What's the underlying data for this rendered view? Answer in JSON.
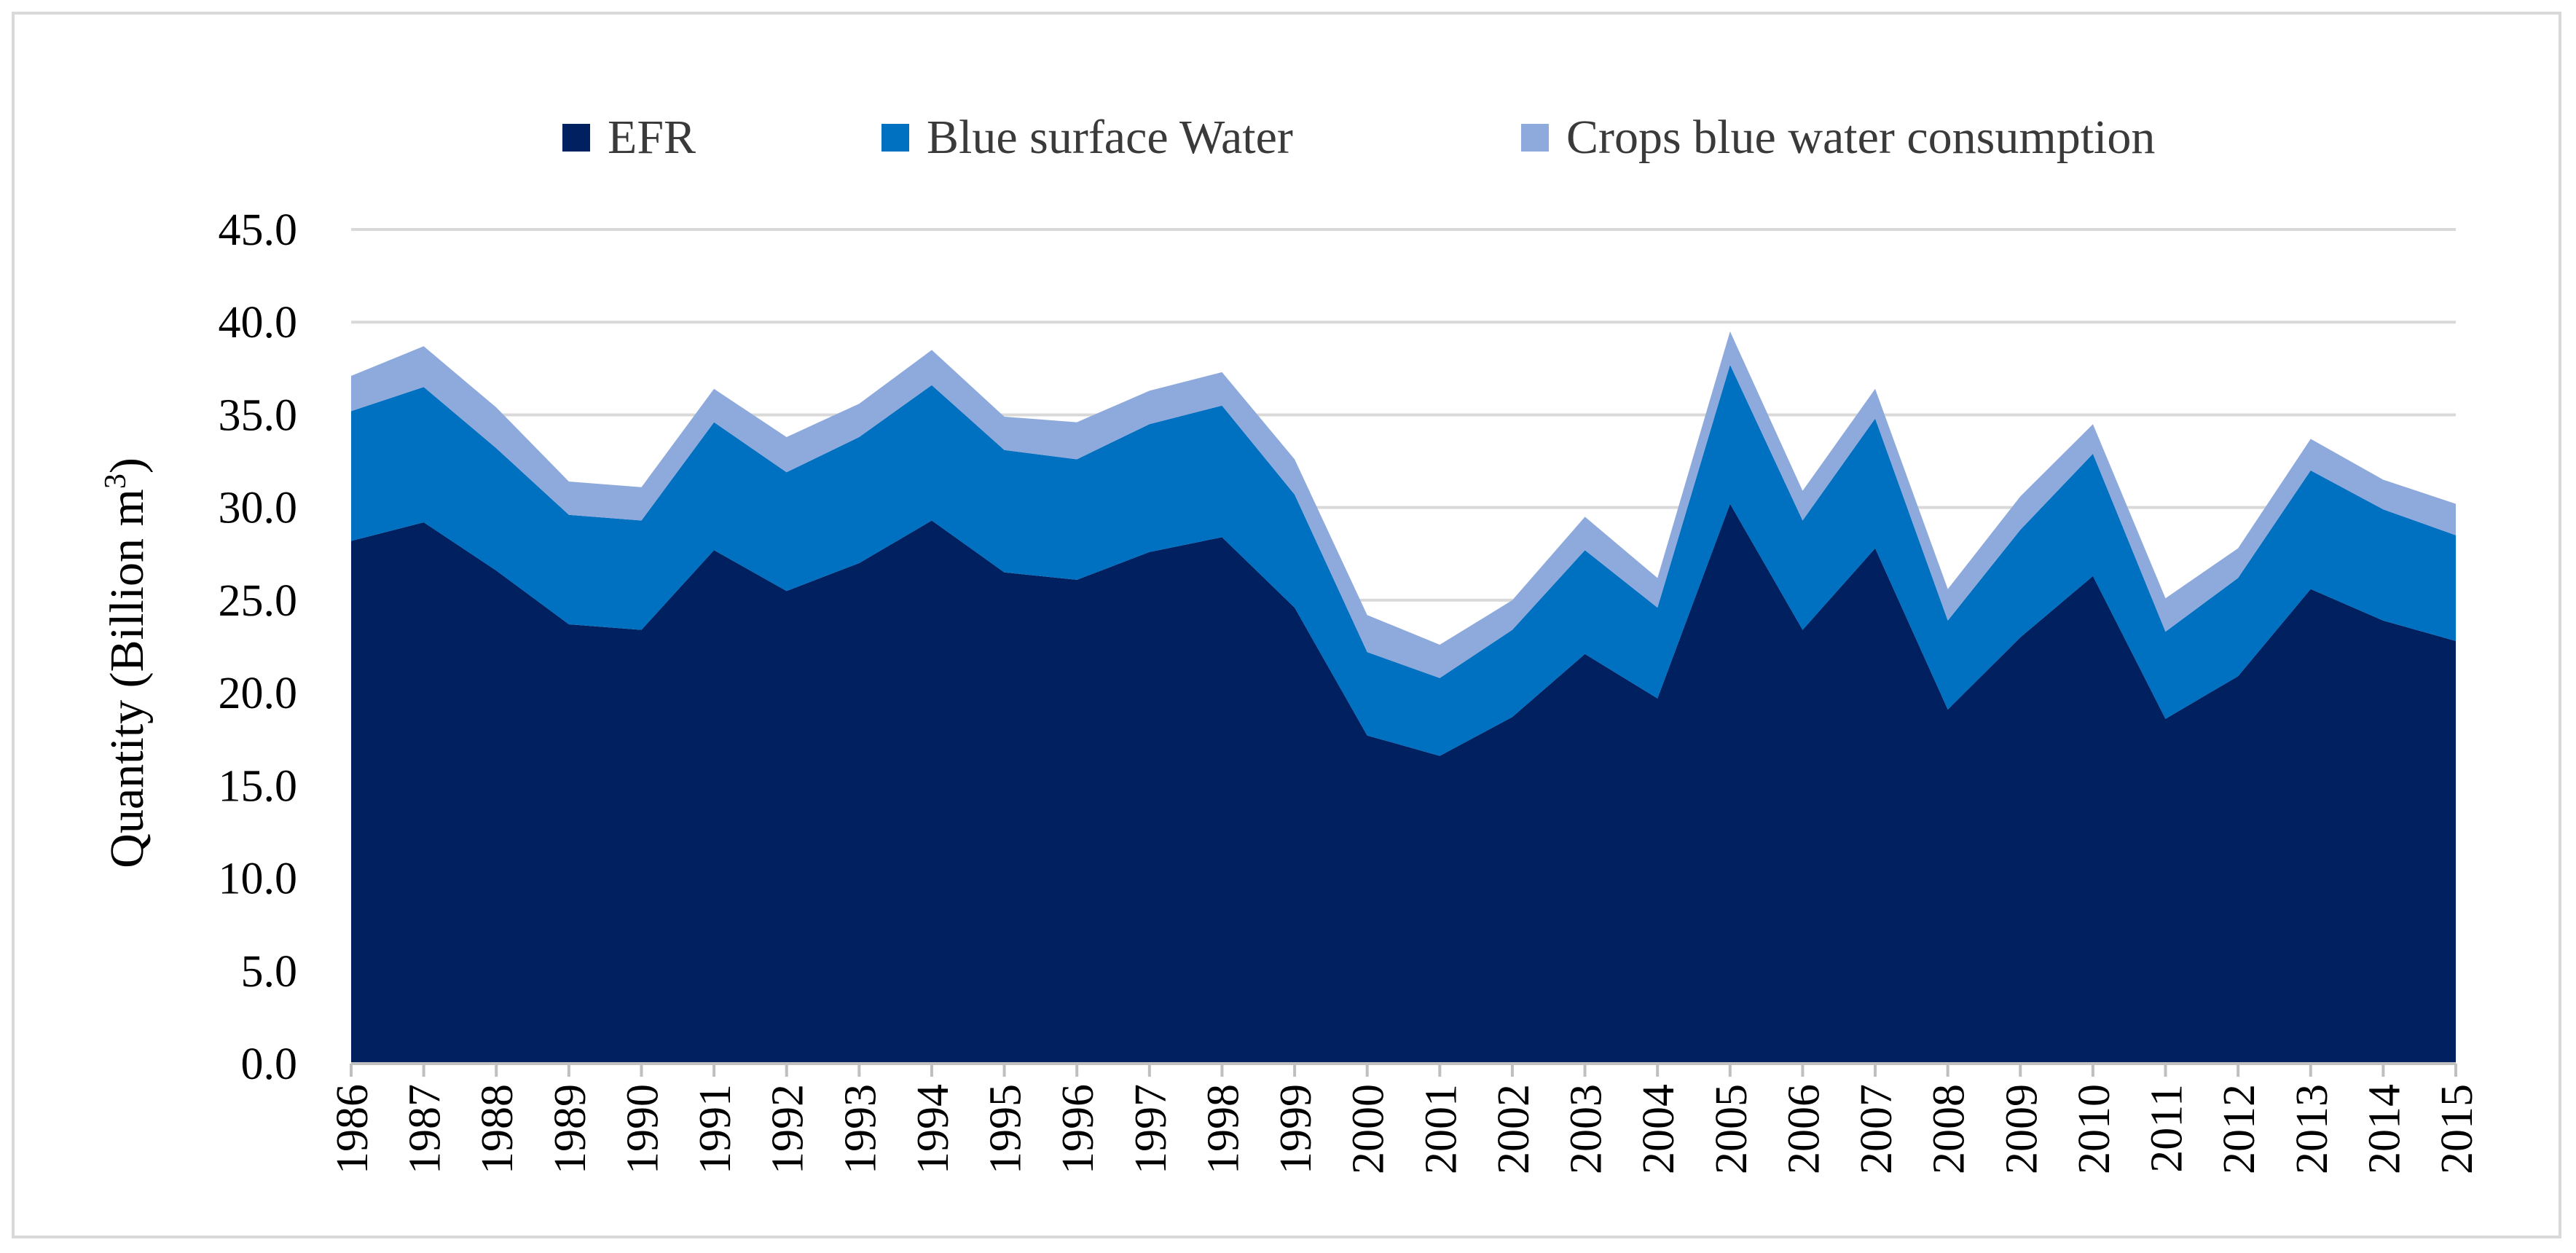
{
  "chart_data": {
    "type": "area",
    "stacked": true,
    "xlabel": "",
    "ylabel": "Quantity (Billion m",
    "ylabel_sup": "3",
    "ylabel_close": ")",
    "ylim": [
      0,
      45
    ],
    "yticks": [
      "0.0",
      "5.0",
      "10.0",
      "15.0",
      "20.0",
      "25.0",
      "30.0",
      "35.0",
      "40.0",
      "45.0"
    ],
    "grid": true,
    "legend_position": "top",
    "categories": [
      "1986",
      "1987",
      "1988",
      "1989",
      "1990",
      "1991",
      "1992",
      "1993",
      "1994",
      "1995",
      "1996",
      "1997",
      "1998",
      "1999",
      "2000",
      "2001",
      "2002",
      "2003",
      "2004",
      "2005",
      "2006",
      "2007",
      "2008",
      "2009",
      "2010",
      "2011",
      "2012",
      "2013",
      "2014",
      "2015"
    ],
    "series": [
      {
        "name": "EFR",
        "color": "#002060",
        "values": [
          28.2,
          29.2,
          26.6,
          23.7,
          23.4,
          27.7,
          25.5,
          27.0,
          29.3,
          26.5,
          26.1,
          27.6,
          28.4,
          24.6,
          17.7,
          16.6,
          18.7,
          22.1,
          19.7,
          30.2,
          23.4,
          27.8,
          19.1,
          23.0,
          26.3,
          18.6,
          20.9,
          25.6,
          23.9,
          22.8
        ]
      },
      {
        "name": "Blue surface Water",
        "color": "#0070c0",
        "values": [
          7.0,
          7.3,
          6.6,
          5.9,
          5.9,
          6.9,
          6.4,
          6.8,
          7.3,
          6.6,
          6.5,
          6.9,
          7.1,
          6.1,
          4.5,
          4.2,
          4.7,
          5.6,
          4.9,
          7.5,
          5.9,
          7.0,
          4.8,
          5.8,
          6.6,
          4.7,
          5.3,
          6.4,
          6.0,
          5.7
        ]
      },
      {
        "name": "Crops blue water consumption",
        "color": "#8eaadc",
        "values": [
          1.9,
          2.2,
          2.2,
          1.8,
          1.8,
          1.8,
          1.9,
          1.8,
          1.9,
          1.8,
          2.0,
          1.8,
          1.8,
          1.9,
          2.0,
          1.8,
          1.6,
          1.8,
          1.6,
          1.8,
          1.6,
          1.6,
          1.7,
          1.8,
          1.6,
          1.8,
          1.6,
          1.7,
          1.6,
          1.7
        ]
      }
    ]
  }
}
